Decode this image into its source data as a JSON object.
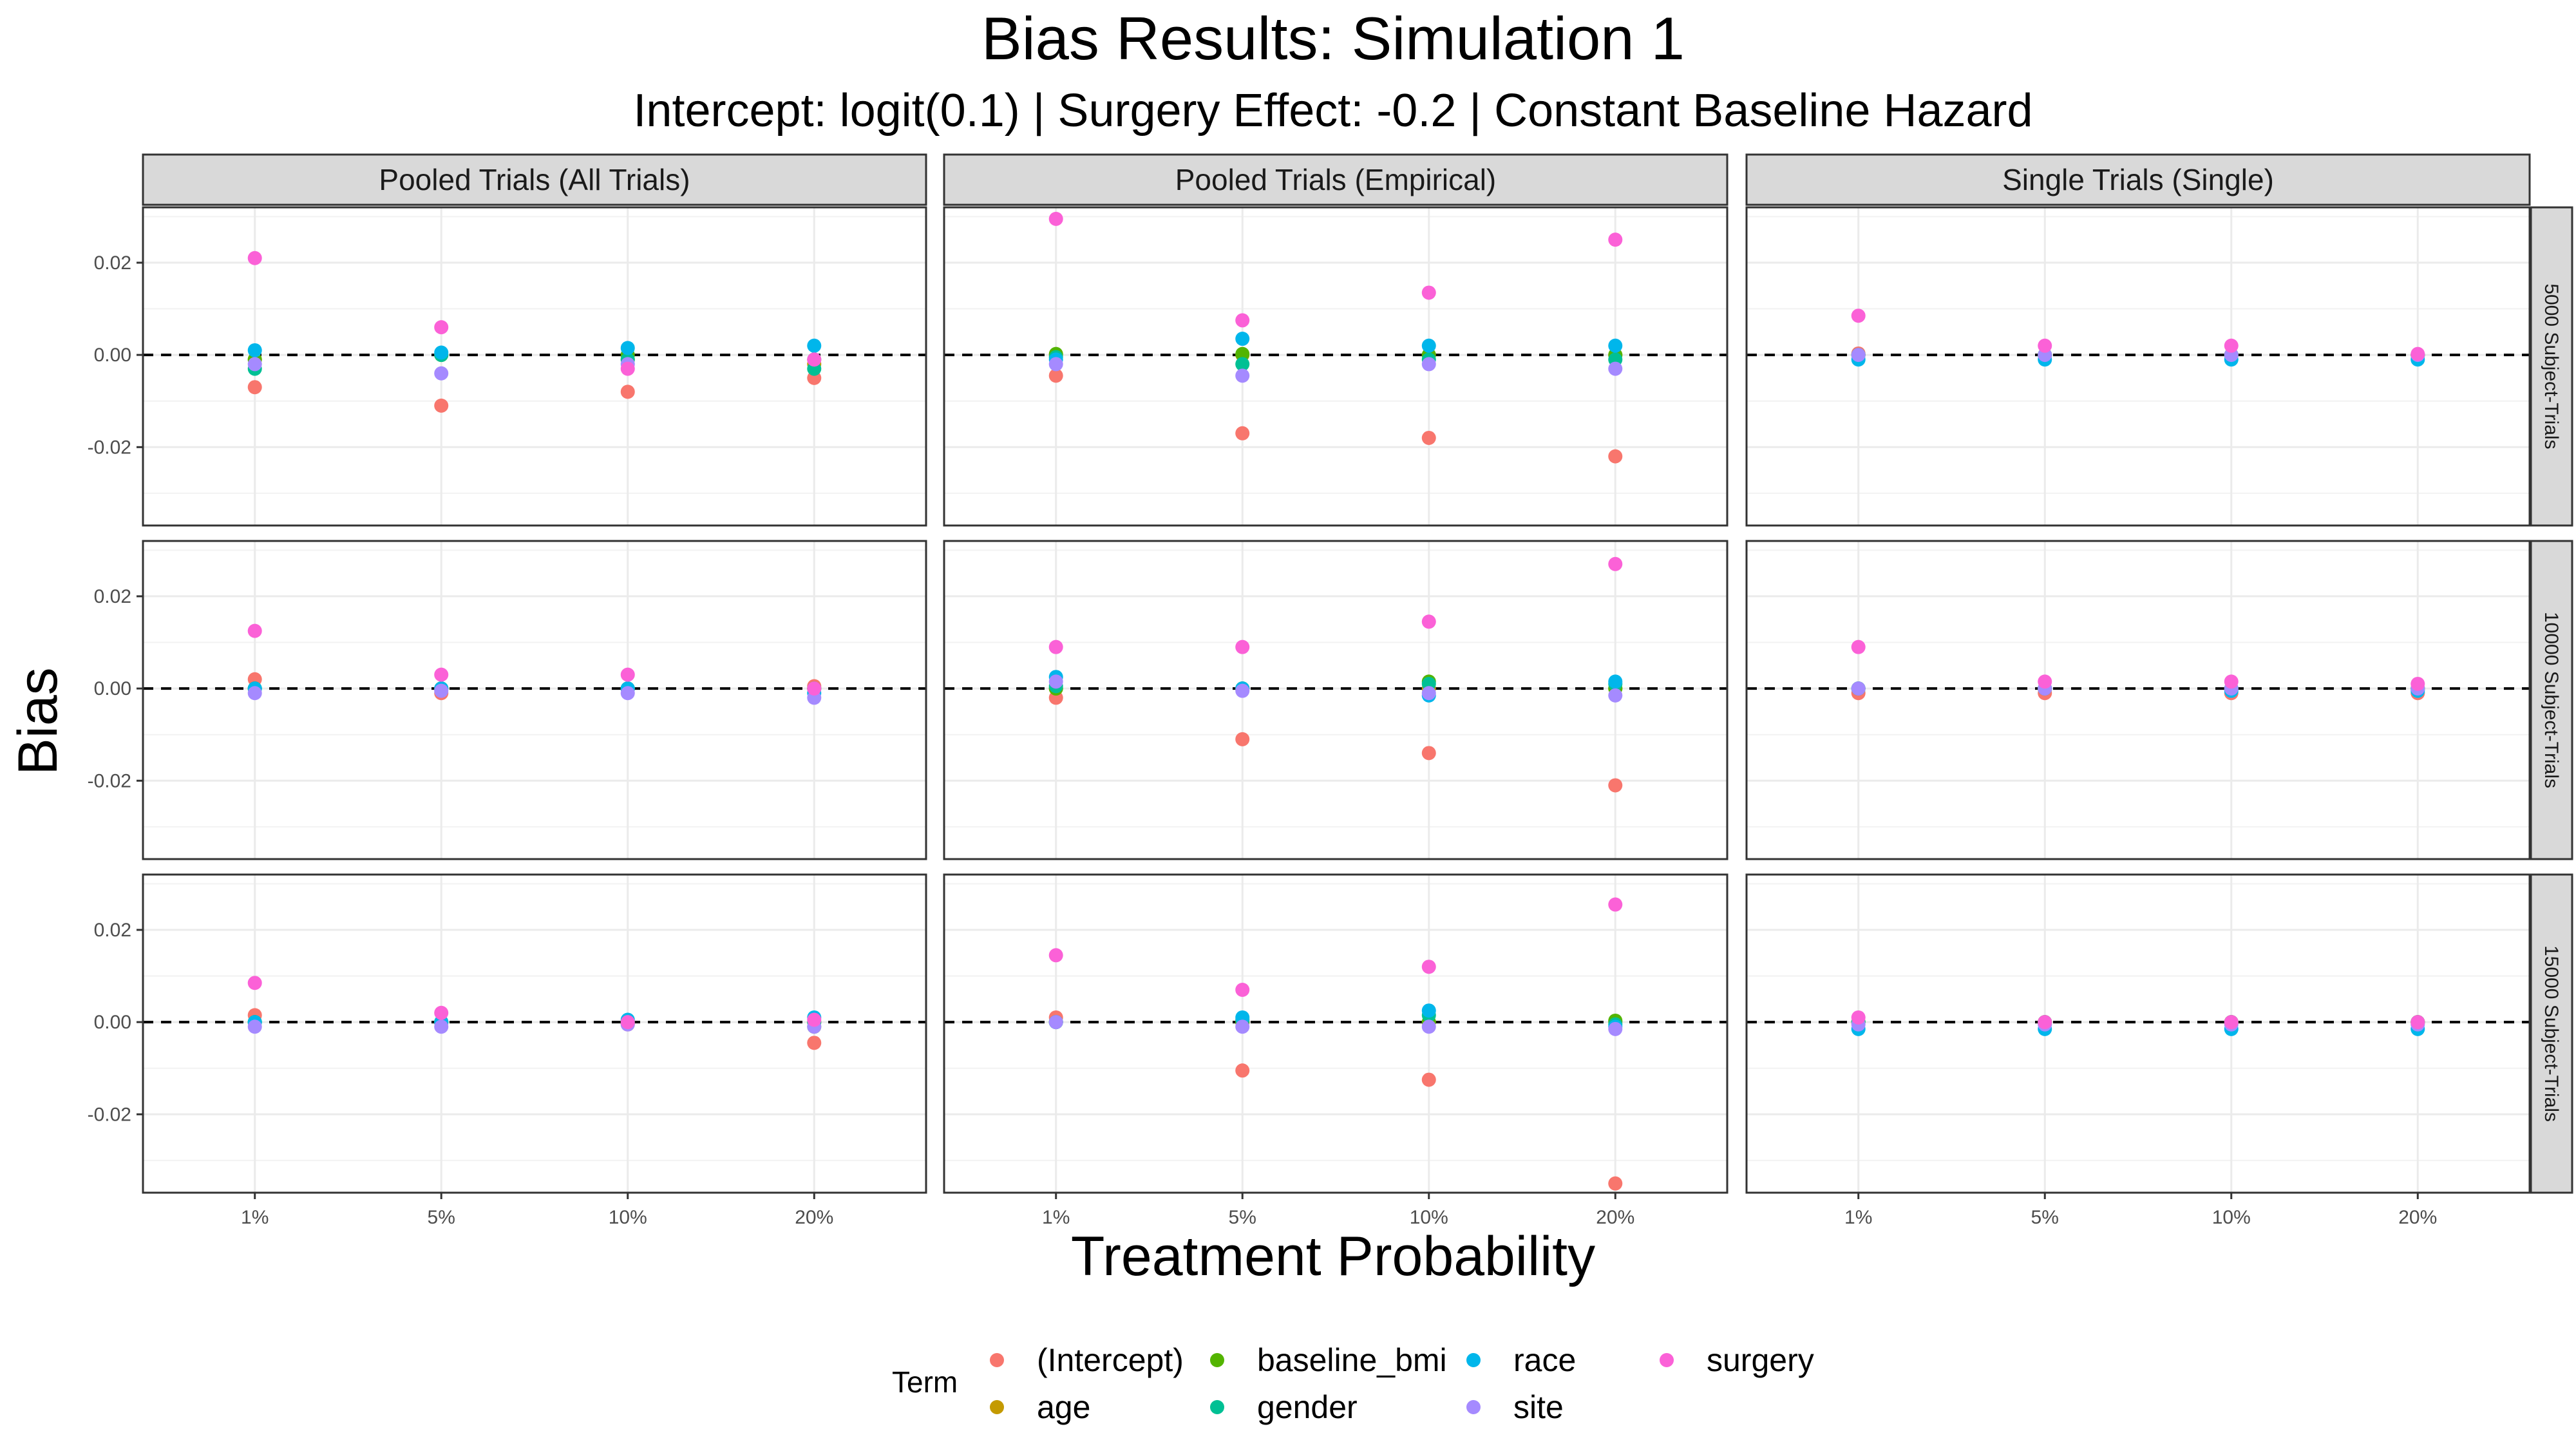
{
  "chart_data": {
    "type": "scatter",
    "title": "Bias Results: Simulation 1",
    "subtitle": "Intercept: logit(0.1) | Surgery Effect: -0.2 | Constant Baseline Hazard",
    "xlabel": "Treatment Probability",
    "ylabel": "Bias",
    "x_categories": [
      "1%",
      "5%",
      "10%",
      "20%"
    ],
    "y_ticks": [
      -0.02,
      0.0,
      0.02
    ],
    "y_tick_labels": [
      "-0.02",
      "0.00",
      "0.02"
    ],
    "ylim": [
      -0.037,
      0.032
    ],
    "reference_line": 0,
    "grid": true,
    "columns": [
      "Pooled Trials (All Trials)",
      "Pooled Trials (Empirical)",
      "Single Trials (Single)"
    ],
    "rows": [
      "5000 Subject-Trials",
      "10000 Subject-Trials",
      "15000 Subject-Trials"
    ],
    "legend": {
      "title": "Term",
      "position": "bottom",
      "items": [
        {
          "name": "(Intercept)",
          "color": "#F8766D"
        },
        {
          "name": "age",
          "color": "#C49A00"
        },
        {
          "name": "baseline_bmi",
          "color": "#53B400"
        },
        {
          "name": "gender",
          "color": "#00C094"
        },
        {
          "name": "race",
          "color": "#00B6EB"
        },
        {
          "name": "site",
          "color": "#A58AFF"
        },
        {
          "name": "surgery",
          "color": "#FB61D7"
        }
      ]
    },
    "panels": [
      {
        "row": 0,
        "col": 0,
        "points": [
          {
            "term": "(Intercept)",
            "values": [
              -0.007,
              -0.011,
              -0.008,
              -0.005
            ]
          },
          {
            "term": "age",
            "values": [
              -0.001,
              0.0,
              -0.001,
              -0.002
            ]
          },
          {
            "term": "baseline_bmi",
            "values": [
              -0.001,
              0.0,
              0.0,
              -0.001
            ]
          },
          {
            "term": "gender",
            "values": [
              -0.003,
              0.0,
              -0.001,
              -0.003
            ]
          },
          {
            "term": "race",
            "values": [
              0.001,
              0.0005,
              0.0015,
              0.002
            ]
          },
          {
            "term": "site",
            "values": [
              -0.002,
              -0.004,
              -0.002,
              -0.001
            ]
          },
          {
            "term": "surgery",
            "values": [
              0.021,
              0.006,
              -0.003,
              -0.001
            ]
          }
        ]
      },
      {
        "row": 0,
        "col": 1,
        "points": [
          {
            "term": "(Intercept)",
            "values": [
              -0.0045,
              -0.017,
              -0.018,
              -0.022
            ]
          },
          {
            "term": "age",
            "values": [
              0.0,
              0.0,
              0.0,
              0.0
            ]
          },
          {
            "term": "baseline_bmi",
            "values": [
              0.0002,
              0.0002,
              0.0,
              0.0
            ]
          },
          {
            "term": "gender",
            "values": [
              -0.0005,
              -0.002,
              -0.001,
              -0.001
            ]
          },
          {
            "term": "race",
            "values": [
              -0.001,
              0.0035,
              0.002,
              0.002
            ]
          },
          {
            "term": "site",
            "values": [
              -0.002,
              -0.0045,
              -0.002,
              -0.003
            ]
          },
          {
            "term": "surgery",
            "values": [
              0.0295,
              0.0075,
              0.0135,
              0.025
            ]
          }
        ]
      },
      {
        "row": 0,
        "col": 2,
        "points": [
          {
            "term": "(Intercept)",
            "values": [
              0.0003,
              0.0,
              0.0,
              0.0
            ]
          },
          {
            "term": "age",
            "values": [
              0.0,
              0.0,
              0.0,
              0.0
            ]
          },
          {
            "term": "baseline_bmi",
            "values": [
              0.0,
              0.0,
              0.0,
              0.0
            ]
          },
          {
            "term": "gender",
            "values": [
              0.0,
              0.0,
              0.0,
              0.0
            ]
          },
          {
            "term": "race",
            "values": [
              -0.001,
              -0.001,
              -0.001,
              -0.001
            ]
          },
          {
            "term": "site",
            "values": [
              0.0,
              0.0,
              0.0,
              0.0
            ]
          },
          {
            "term": "surgery",
            "values": [
              0.0085,
              0.002,
              0.002,
              0.0002
            ]
          }
        ]
      },
      {
        "row": 1,
        "col": 0,
        "points": [
          {
            "term": "(Intercept)",
            "values": [
              0.002,
              -0.001,
              0.0,
              0.0005
            ]
          },
          {
            "term": "age",
            "values": [
              0.0,
              0.0,
              0.0,
              0.0
            ]
          },
          {
            "term": "baseline_bmi",
            "values": [
              0.0,
              0.0,
              0.0,
              0.0
            ]
          },
          {
            "term": "gender",
            "values": [
              0.0,
              0.0,
              0.0,
              0.0
            ]
          },
          {
            "term": "race",
            "values": [
              0.0,
              0.0,
              0.0,
              -0.001
            ]
          },
          {
            "term": "site",
            "values": [
              -0.001,
              -0.0005,
              -0.001,
              -0.002
            ]
          },
          {
            "term": "surgery",
            "values": [
              0.0125,
              0.003,
              0.003,
              0.0
            ]
          }
        ]
      },
      {
        "row": 1,
        "col": 1,
        "points": [
          {
            "term": "(Intercept)",
            "values": [
              -0.002,
              -0.011,
              -0.014,
              -0.021
            ]
          },
          {
            "term": "age",
            "values": [
              0.0,
              0.0,
              0.0,
              0.0
            ]
          },
          {
            "term": "baseline_bmi",
            "values": [
              0.0,
              0.0,
              0.0015,
              0.0
            ]
          },
          {
            "term": "gender",
            "values": [
              0.0005,
              0.0,
              0.001,
              0.001
            ]
          },
          {
            "term": "race",
            "values": [
              0.0025,
              0.0,
              -0.0015,
              0.0015
            ]
          },
          {
            "term": "site",
            "values": [
              0.0015,
              -0.0005,
              -0.001,
              -0.0015
            ]
          },
          {
            "term": "surgery",
            "values": [
              0.009,
              0.009,
              0.0145,
              0.027
            ]
          }
        ]
      },
      {
        "row": 1,
        "col": 2,
        "points": [
          {
            "term": "(Intercept)",
            "values": [
              -0.001,
              -0.001,
              -0.001,
              -0.001
            ]
          },
          {
            "term": "age",
            "values": [
              0.0,
              0.0,
              0.0,
              0.0
            ]
          },
          {
            "term": "baseline_bmi",
            "values": [
              0.0,
              0.0,
              0.0,
              0.0
            ]
          },
          {
            "term": "gender",
            "values": [
              0.0,
              0.0,
              0.0,
              0.0
            ]
          },
          {
            "term": "race",
            "values": [
              0.0,
              0.0,
              -0.0005,
              -0.0005
            ]
          },
          {
            "term": "site",
            "values": [
              0.0,
              0.0,
              0.0,
              0.0
            ]
          },
          {
            "term": "surgery",
            "values": [
              0.009,
              0.0015,
              0.0015,
              0.001
            ]
          }
        ]
      },
      {
        "row": 2,
        "col": 0,
        "points": [
          {
            "term": "(Intercept)",
            "values": [
              0.0015,
              0.0,
              -0.0005,
              -0.0045
            ]
          },
          {
            "term": "age",
            "values": [
              0.0,
              0.0,
              0.0,
              0.0
            ]
          },
          {
            "term": "baseline_bmi",
            "values": [
              0.0,
              0.0,
              0.0,
              -0.001
            ]
          },
          {
            "term": "gender",
            "values": [
              0.0,
              0.0,
              0.0,
              0.0
            ]
          },
          {
            "term": "race",
            "values": [
              0.0,
              0.0,
              0.0005,
              0.001
            ]
          },
          {
            "term": "site",
            "values": [
              -0.001,
              -0.001,
              -0.0005,
              -0.001
            ]
          },
          {
            "term": "surgery",
            "values": [
              0.0085,
              0.002,
              0.0,
              0.0005
            ]
          }
        ]
      },
      {
        "row": 2,
        "col": 1,
        "points": [
          {
            "term": "(Intercept)",
            "values": [
              0.001,
              -0.0105,
              -0.0125,
              -0.035
            ]
          },
          {
            "term": "age",
            "values": [
              0.0,
              0.0,
              0.0,
              0.0
            ]
          },
          {
            "term": "baseline_bmi",
            "values": [
              0.0,
              0.0,
              0.0,
              0.0003
            ]
          },
          {
            "term": "gender",
            "values": [
              0.0,
              0.0005,
              0.0015,
              -0.0005
            ]
          },
          {
            "term": "race",
            "values": [
              0.0,
              0.001,
              0.0025,
              -0.001
            ]
          },
          {
            "term": "site",
            "values": [
              0.0,
              -0.001,
              -0.001,
              -0.0015
            ]
          },
          {
            "term": "surgery",
            "values": [
              0.0145,
              0.007,
              0.012,
              0.0255
            ]
          }
        ]
      },
      {
        "row": 2,
        "col": 2,
        "points": [
          {
            "term": "(Intercept)",
            "values": [
              0.0,
              0.0,
              0.0,
              0.0
            ]
          },
          {
            "term": "age",
            "values": [
              0.0,
              0.0,
              0.0,
              0.0
            ]
          },
          {
            "term": "baseline_bmi",
            "values": [
              0.0,
              0.0,
              0.0,
              0.0
            ]
          },
          {
            "term": "gender",
            "values": [
              0.0,
              0.0,
              0.0,
              0.0
            ]
          },
          {
            "term": "race",
            "values": [
              -0.0015,
              -0.0015,
              -0.0015,
              -0.0015
            ]
          },
          {
            "term": "site",
            "values": [
              -0.0005,
              -0.0005,
              -0.0005,
              -0.0005
            ]
          },
          {
            "term": "surgery",
            "values": [
              0.001,
              0.0,
              0.0,
              0.0
            ]
          }
        ]
      }
    ]
  }
}
